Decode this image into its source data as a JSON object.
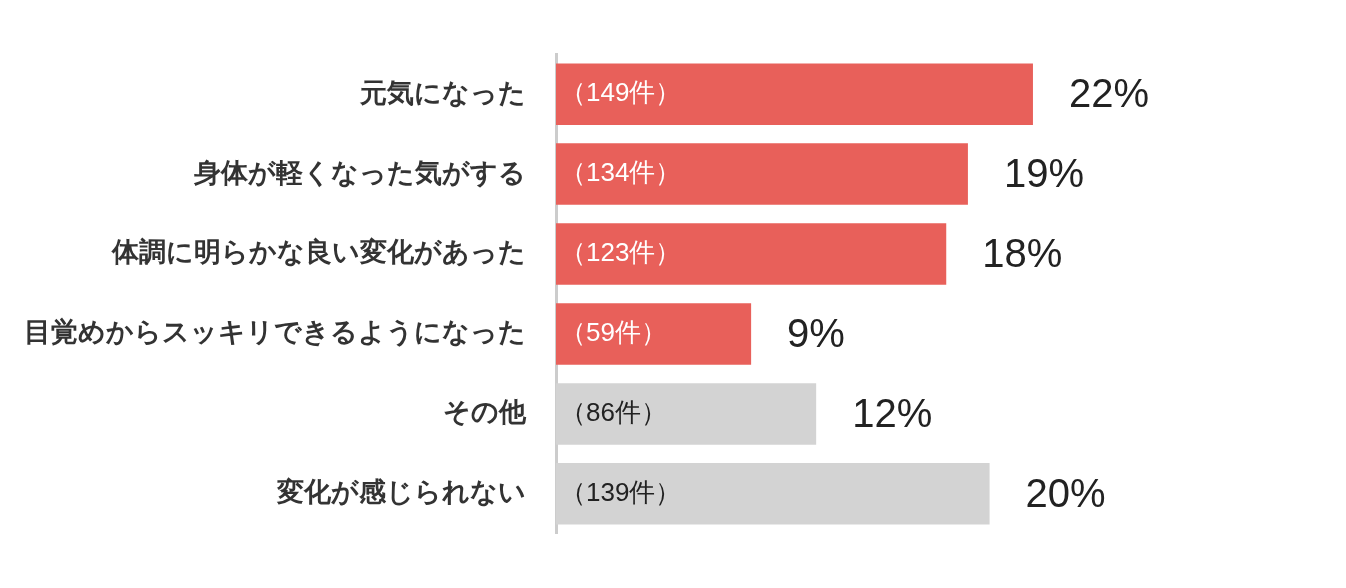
{
  "chart_data": {
    "type": "bar",
    "orientation": "horizontal",
    "categories": [
      "元気になった",
      "身体が軽くなった気がする",
      "体調に明らかな良い変化があった",
      "目覚めからスッキリできるようになった",
      "その他",
      "変化が感じられない"
    ],
    "values": [
      22,
      19,
      18,
      9,
      12,
      20
    ],
    "colors": [
      "#e8605a",
      "#e8605a",
      "#e8605a",
      "#e8605a",
      "#d3d3d3",
      "#d3d3d3"
    ],
    "value_labels": [
      "22%",
      "19%",
      "18%",
      "9%",
      "12%",
      "20%"
    ],
    "annotations": [
      "（149件）",
      "（134件）",
      "（123件）",
      "（59件）",
      "（86件）",
      "（139件）"
    ],
    "tick_labels": "y",
    "grid": false,
    "legend": false
  }
}
